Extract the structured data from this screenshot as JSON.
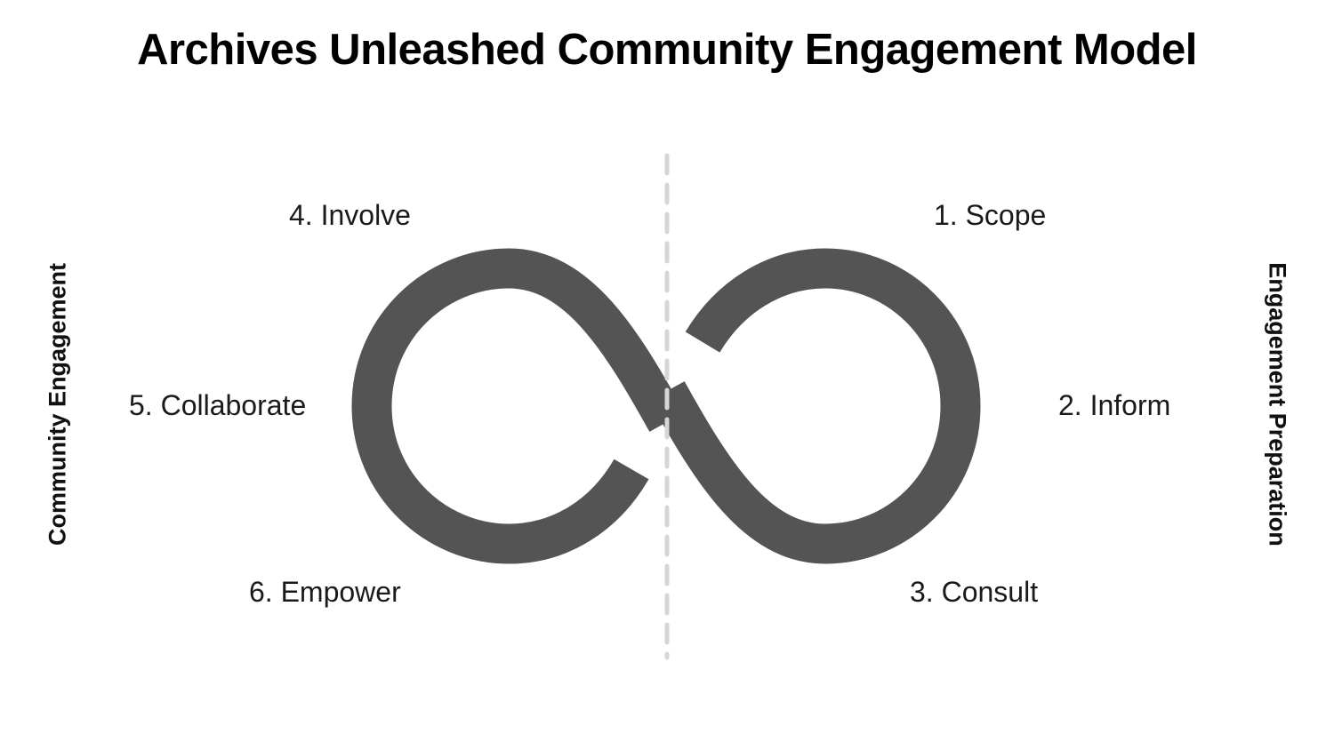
{
  "title": "Archives Unleashed Community Engagement Model",
  "stages": {
    "scope": "1. Scope",
    "inform": "2. Inform",
    "consult": "3. Consult",
    "involve": "4. Involve",
    "collaborate": "5. Collaborate",
    "empower": "6. Empower"
  },
  "sides": {
    "left": "Community Engagement",
    "right": "Engagement Preparation"
  },
  "colors": {
    "loop": "#545454",
    "divider": "#d6d6d6",
    "text": "#1a1a1a"
  }
}
